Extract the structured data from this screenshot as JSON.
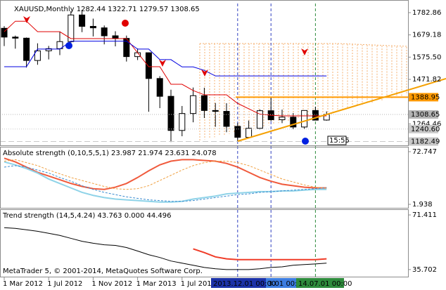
{
  "chart_data": [
    {
      "type": "candlestick",
      "title": "XAUUSD,Monthly  1282.44 1322.71 1279.57 1308.65",
      "categories": [
        "1 Mar 2012",
        null,
        null,
        null,
        "1 Jul 2012",
        null,
        null,
        null,
        "1 Nov 2012",
        null,
        null,
        null,
        "1 Mar 2013",
        null,
        null,
        null,
        "1 Jul 2013",
        null,
        null,
        null,
        null,
        "2013.12.01 00:00",
        null,
        null,
        "3.01 00:00",
        null,
        null,
        null,
        "14.07.01 00:00",
        null
      ],
      "open": [
        1710,
        1669,
        1664,
        1560,
        1605,
        1615,
        1648,
        1772,
        1719,
        1712,
        1675,
        1663,
        1578,
        1596,
        1476,
        1393,
        1234,
        1313,
        1396,
        1327,
        1323,
        1253,
        1202,
        1244,
        1326,
        1284,
        1296,
        1250,
        1327,
        1282.44
      ],
      "high": [
        1720,
        1676,
        1667,
        1640,
        1628,
        1693,
        1790,
        1796,
        1755,
        1723,
        1696,
        1676,
        1616,
        1597,
        1487,
        1424,
        1348,
        1434,
        1433,
        1362,
        1361,
        1268,
        1280,
        1332,
        1392,
        1331,
        1315,
        1325,
        1345,
        1322.71
      ],
      "low": [
        1627,
        1615,
        1527,
        1540,
        1565,
        1585,
        1643,
        1692,
        1672,
        1635,
        1626,
        1555,
        1562,
        1321,
        1338,
        1180,
        1207,
        1272,
        1292,
        1251,
        1226,
        1181,
        1202,
        1238,
        1277,
        1268,
        1240,
        1240,
        1285,
        1279.57
      ],
      "close": [
        1669,
        1664,
        1560,
        1605,
        1615,
        1648,
        1772,
        1719,
        1712,
        1675,
        1663,
        1578,
        1596,
        1476,
        1393,
        1234,
        1313,
        1396,
        1327,
        1323,
        1253,
        1202,
        1244,
        1326,
        1284,
        1296,
        1250,
        1327,
        1282,
        1308.65
      ],
      "series": [
        {
          "color": "#e00000",
          "values": [
            1694,
            1743,
            1743,
            1694,
            1694,
            1694,
            1662,
            1662,
            1662,
            1662,
            1662,
            1662,
            1596,
            1531,
            1531,
            1449,
            1449,
            1420,
            1400,
            1400,
            1400,
            1360,
            1335,
            1310,
            1305,
            1302,
            1302,
            1302,
            1302,
            1302
          ]
        },
        {
          "color": "#0000e0",
          "values": [
            1531,
            1531,
            1531,
            1613,
            1613,
            1613,
            1650,
            1650,
            1650,
            1650,
            1650,
            1650,
            1613,
            1613,
            1564,
            1564,
            1530,
            1530,
            1514,
            1488,
            1488,
            1488,
            1488,
            1488,
            1488,
            1488,
            1488,
            1488,
            1488,
            1488
          ]
        }
      ],
      "ylim": [
        1161.3,
        1825.4
      ],
      "yticks": [
        1782.86,
        1679.18,
        {
          "value": 1575.5,
          "label": "1575.50"
        },
        1471.82,
        1264.46
      ],
      "levels": [
        {
          "value": 1388.95,
          "color": "#ff9900",
          "style": "solid"
        },
        {
          "value": 1308.65,
          "color": "#b4b4b4",
          "style": "dotted"
        },
        {
          "value": 1240.6,
          "label": "1240.60",
          "color": "#c8c8c8",
          "style": "dotted"
        },
        {
          "value": 1182.49,
          "color": "#c8c8c8",
          "style": "dashed"
        }
      ],
      "annotation": "15:55"
    },
    {
      "type": "line",
      "title": "Absolute strength (0,10,5,5,1) 23.987 21.974 23.631 24.078",
      "series": [
        {
          "color": "#f05a3c",
          "width": 2,
          "dash": "none",
          "values": [
            64,
            59,
            52,
            45,
            40,
            35,
            30,
            26,
            23,
            22,
            25,
            30,
            38,
            47,
            55,
            60,
            62,
            62,
            61,
            60,
            57,
            52,
            45,
            38,
            33,
            29,
            27,
            25,
            24,
            23.987
          ]
        },
        {
          "color": "#8fd3e8",
          "width": 2,
          "dash": "none",
          "values": [
            59,
            55,
            50,
            44,
            36,
            30,
            24,
            18,
            14,
            11,
            9,
            8,
            7,
            6,
            5,
            5,
            6,
            9,
            11,
            13,
            16,
            17,
            18,
            19,
            19,
            20,
            20,
            21,
            22,
            21.974
          ]
        },
        {
          "color": "#f0a040",
          "width": 1,
          "dash": "3 2",
          "values": [
            60,
            62,
            58,
            54,
            48,
            43,
            38,
            34,
            30,
            26,
            23,
            22,
            23,
            27,
            34,
            41,
            48,
            54,
            58,
            60,
            60,
            58,
            54,
            48,
            42,
            36,
            32,
            28,
            25,
            23.631
          ]
        },
        {
          "color": "#3c8cd0",
          "width": 1,
          "dash": "3 2",
          "values": [
            52,
            54,
            52,
            48,
            44,
            38,
            33,
            27,
            22,
            18,
            15,
            12,
            10,
            8,
            7,
            6,
            6,
            7,
            9,
            11,
            13,
            15,
            16,
            18,
            19,
            20,
            21,
            22,
            23,
            24.078
          ]
        }
      ],
      "ylim": [
        -3.73,
        78.41
      ],
      "yticks": [
        72.747,
        1.938
      ]
    },
    {
      "type": "line",
      "title": "Trend strength (14,5,4.24) 43.763 0.000 44.496",
      "series": [
        {
          "color": "#000000",
          "width": 1,
          "dash": "none",
          "values": [
            63.06,
            62.6,
            61.7,
            60.7,
            59.4,
            58.0,
            56.1,
            54.2,
            52.9,
            51.9,
            51.5,
            50.1,
            47.8,
            45.4,
            43.6,
            41.3,
            39.9,
            38.5,
            37.1,
            36.2,
            35.7,
            35.7,
            35.7,
            36.2,
            37.1,
            37.5,
            38.5,
            39.0,
            39.4,
            39.9
          ]
        },
        {
          "color": "#f03c28",
          "width": 2,
          "dash": "none",
          "values": [
            null,
            null,
            null,
            null,
            null,
            null,
            null,
            null,
            null,
            null,
            null,
            null,
            null,
            null,
            null,
            null,
            null,
            49.2,
            46.8,
            44.0,
            42.7,
            42.2,
            42.2,
            42.2,
            42.2,
            42.2,
            42.2,
            42.2,
            42.2,
            42.7
          ]
        }
      ],
      "ylim": [
        30.6,
        74.66
      ],
      "yticks": [
        71.411,
        35.702
      ],
      "annotation": "MetaTrader 5, © 2001-2014, MetaQuotes Software Corp."
    }
  ]
}
